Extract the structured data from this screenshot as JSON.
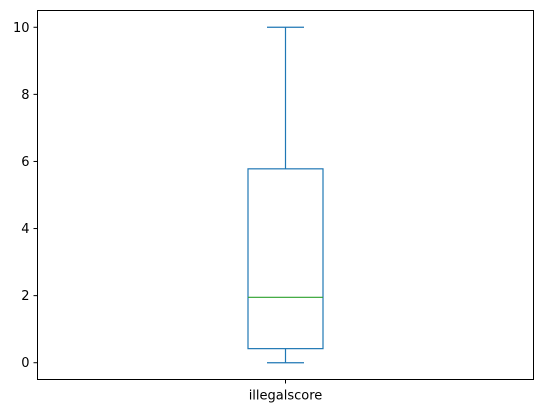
{
  "chart_data": {
    "type": "box",
    "categories": [
      "illegalscore"
    ],
    "series": [
      {
        "min": 0,
        "q1": 0.42,
        "median": 1.95,
        "q3": 5.78,
        "max": 10
      }
    ],
    "ylim": [
      -0.5,
      10.5
    ],
    "yticks": [
      0,
      2,
      4,
      6,
      8,
      10
    ],
    "grid": false,
    "colors": {
      "box": "#1f77b4",
      "whisker": "#1f77b4",
      "median": "#2ca02c"
    }
  }
}
